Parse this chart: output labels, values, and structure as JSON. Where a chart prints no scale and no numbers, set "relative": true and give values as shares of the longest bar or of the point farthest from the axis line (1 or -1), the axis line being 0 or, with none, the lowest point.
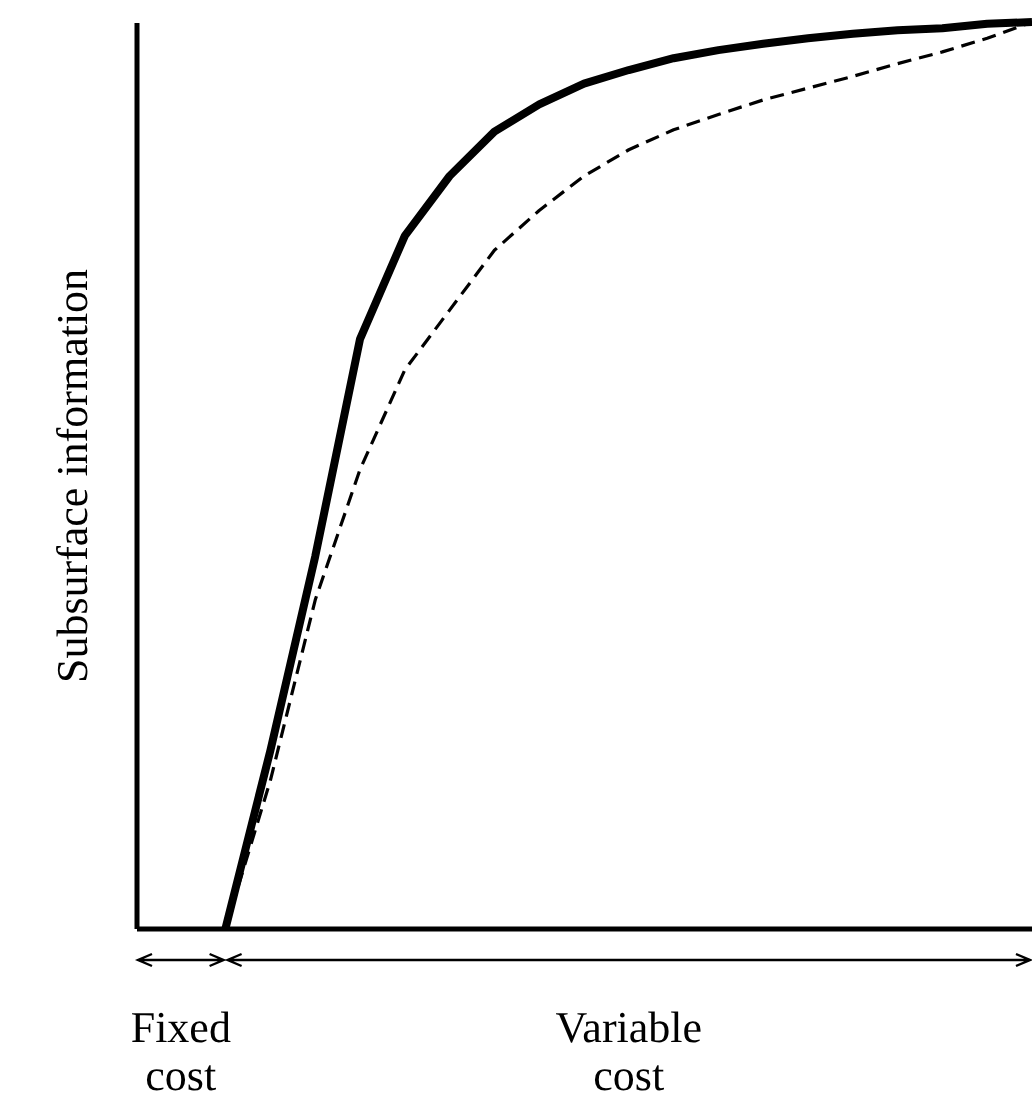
{
  "chart_data": {
    "type": "line",
    "relative": true,
    "ylabel": "Subsurface information",
    "categories": [
      null,
      null,
      null,
      null,
      null,
      null,
      null,
      null,
      null,
      null,
      null,
      null,
      null,
      null,
      null,
      null,
      null,
      null,
      null,
      null,
      null
    ],
    "series": [
      {
        "color": "#000000",
        "line_style": "solid",
        "values": [
          null,
          null,
          0,
          0.196,
          0.41,
          0.65,
          0.764,
          0.83,
          0.879,
          0.909,
          0.932,
          0.947,
          0.96,
          0.969,
          0.976,
          0.982,
          0.987,
          0.991,
          0.993,
          0.998,
          1
        ]
      },
      {
        "color": "#000000",
        "line_style": "dashed",
        "values": [
          null,
          null,
          0,
          0.163,
          0.362,
          0.506,
          0.616,
          0.682,
          0.748,
          0.792,
          0.83,
          0.859,
          0.881,
          0.898,
          0.914,
          0.927,
          0.94,
          0.954,
          0.967,
          0.982,
          1
        ]
      }
    ],
    "annotations": [
      "Fixed cost",
      "Variable cost"
    ]
  }
}
